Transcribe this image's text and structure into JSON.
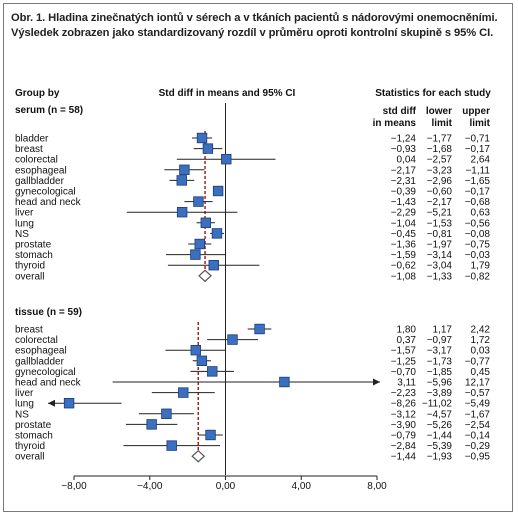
{
  "caption": "Obr. 1. Hladina zinečnatých iontů v sérech a v tkáních pacientů s nádorovými onemocněními. Výsledek zobrazen jako standardizovaný rozdíl v průměru oproti kontrolní skupině s 95% CI.",
  "chart_data": {
    "type": "forest",
    "column_headers": {
      "group": "Group by",
      "plot": "Std diff in means and 95% CI",
      "stats": "Statistics for each study",
      "std_diff": [
        "std diff",
        "in means"
      ],
      "lower": [
        "lower",
        "limit"
      ],
      "upper": [
        "upper",
        "limit"
      ]
    },
    "x_ticks": [
      "−8,00",
      "−4,00",
      "0,00",
      "4,00",
      "8,00"
    ],
    "x_tick_values": [
      -8,
      -4,
      0,
      4,
      8
    ],
    "xlim": [
      -8,
      8
    ],
    "reference_line": 0,
    "groups": [
      {
        "name": "serum (n = 58)",
        "dashed_line_at": -1.08,
        "rows": [
          {
            "label": "bladder",
            "est": -1.24,
            "lo": -1.77,
            "hi": -0.71,
            "est_text": "−1,24",
            "lo_text": "−1,77",
            "hi_text": "−0,71"
          },
          {
            "label": "breast",
            "est": -0.93,
            "lo": -1.68,
            "hi": -0.17,
            "est_text": "−0,93",
            "lo_text": "−1,68",
            "hi_text": "−0,17"
          },
          {
            "label": "colorectal",
            "est": 0.04,
            "lo": -2.57,
            "hi": 2.64,
            "est_text": "0,04",
            "lo_text": "−2,57",
            "hi_text": "2,64"
          },
          {
            "label": "esophageal",
            "est": -2.17,
            "lo": -3.23,
            "hi": -1.11,
            "est_text": "−2,17",
            "lo_text": "−3,23",
            "hi_text": "−1,11"
          },
          {
            "label": "gallbladder",
            "est": -2.31,
            "lo": -2.96,
            "hi": -1.65,
            "est_text": "−2,31",
            "lo_text": "−2,96",
            "hi_text": "−1,65"
          },
          {
            "label": "gynecological",
            "est": -0.39,
            "lo": -0.6,
            "hi": -0.17,
            "est_text": "−0,39",
            "lo_text": "−0,60",
            "hi_text": "−0,17"
          },
          {
            "label": "head and neck",
            "est": -1.43,
            "lo": -2.17,
            "hi": -0.68,
            "est_text": "−1,43",
            "lo_text": "−2,17",
            "hi_text": "−0,68"
          },
          {
            "label": "liver",
            "est": -2.29,
            "lo": -5.21,
            "hi": 0.63,
            "est_text": "−2,29",
            "lo_text": "−5,21",
            "hi_text": "0,63"
          },
          {
            "label": "lung",
            "est": -1.04,
            "lo": -1.53,
            "hi": -0.56,
            "est_text": "−1,04",
            "lo_text": "−1,53",
            "hi_text": "−0,56"
          },
          {
            "label": "NS",
            "est": -0.45,
            "lo": -0.81,
            "hi": -0.08,
            "est_text": "−0,45",
            "lo_text": "−0,81",
            "hi_text": "−0,08"
          },
          {
            "label": "prostate",
            "est": -1.36,
            "lo": -1.97,
            "hi": -0.75,
            "est_text": "−1,36",
            "lo_text": "−1,97",
            "hi_text": "−0,75"
          },
          {
            "label": "stomach",
            "est": -1.59,
            "lo": -3.14,
            "hi": -0.03,
            "est_text": "−1,59",
            "lo_text": "−3,14",
            "hi_text": "−0,03"
          },
          {
            "label": "thyroid",
            "est": -0.62,
            "lo": -3.04,
            "hi": 1.79,
            "est_text": "−0,62",
            "lo_text": "−3,04",
            "hi_text": "1,79"
          }
        ],
        "overall": {
          "label": "overall",
          "est": -1.08,
          "lo": -1.33,
          "hi": -0.82,
          "est_text": "−1,08",
          "lo_text": "−1,33",
          "hi_text": "−0,82"
        }
      },
      {
        "name": "tissue (n = 59)",
        "dashed_line_at": -1.44,
        "rows": [
          {
            "label": "breast",
            "est": 1.8,
            "lo": 1.17,
            "hi": 2.42,
            "est_text": "1,80",
            "lo_text": "1,17",
            "hi_text": "2,42"
          },
          {
            "label": "colorectal",
            "est": 0.37,
            "lo": -0.97,
            "hi": 1.72,
            "est_text": "0,37",
            "lo_text": "−0,97",
            "hi_text": "1,72"
          },
          {
            "label": "esophageal",
            "est": -1.57,
            "lo": -3.17,
            "hi": 0.03,
            "est_text": "−1,57",
            "lo_text": "−3,17",
            "hi_text": "0,03"
          },
          {
            "label": "gallbladder",
            "est": -1.25,
            "lo": -1.73,
            "hi": -0.77,
            "est_text": "−1,25",
            "lo_text": "−1,73",
            "hi_text": "−0,77"
          },
          {
            "label": "gynecological",
            "est": -0.7,
            "lo": -1.85,
            "hi": 0.45,
            "est_text": "−0,70",
            "lo_text": "−1,85",
            "hi_text": "0,45"
          },
          {
            "label": "head and neck",
            "est": 3.11,
            "lo": -5.96,
            "hi": 12.17,
            "est_text": "3,11",
            "lo_text": "−5,96",
            "hi_text": "12,17"
          },
          {
            "label": "liver",
            "est": -2.23,
            "lo": -3.89,
            "hi": -0.57,
            "est_text": "−2,23",
            "lo_text": "−3,89",
            "hi_text": "−0,57"
          },
          {
            "label": "lung",
            "est": -8.26,
            "lo": -11.02,
            "hi": -5.49,
            "est_text": "−8,26",
            "lo_text": "−11,02",
            "hi_text": "−5,49"
          },
          {
            "label": "NS",
            "est": -3.12,
            "lo": -4.57,
            "hi": -1.67,
            "est_text": "−3,12",
            "lo_text": "−4,57",
            "hi_text": "−1,67"
          },
          {
            "label": "prostate",
            "est": -3.9,
            "lo": -5.26,
            "hi": -2.54,
            "est_text": "−3,90",
            "lo_text": "−5,26",
            "hi_text": "−2,54"
          },
          {
            "label": "stomach",
            "est": -0.79,
            "lo": -1.44,
            "hi": -0.14,
            "est_text": "−0,79",
            "lo_text": "−1,44",
            "hi_text": "−0,14"
          },
          {
            "label": "thyroid",
            "est": -2.84,
            "lo": -5.39,
            "hi": -0.29,
            "est_text": "−2,84",
            "lo_text": "−5,39",
            "hi_text": "−0,29"
          }
        ],
        "overall": {
          "label": "overall",
          "est": -1.44,
          "lo": -1.93,
          "hi": -0.95,
          "est_text": "−1,44",
          "lo_text": "−1,93",
          "hi_text": "−0,95"
        }
      }
    ],
    "colors": {
      "square": "#3b6fc0",
      "square_edge": "#1d3d77",
      "line": "#222222",
      "dashed": "#a00000",
      "diamond_edge": "#555555"
    }
  }
}
